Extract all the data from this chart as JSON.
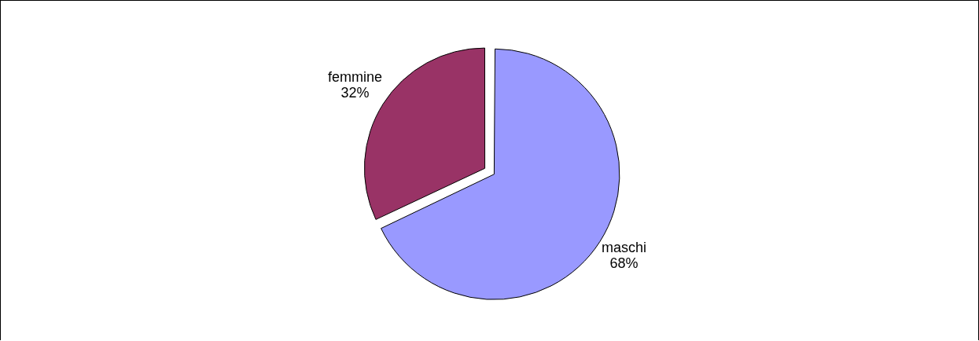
{
  "chart_data": {
    "type": "pie",
    "categories": [
      "maschi",
      "femmine"
    ],
    "values": [
      68,
      32
    ],
    "value_labels": [
      "68%",
      "32%"
    ],
    "colors": [
      "#9999ff",
      "#993366"
    ],
    "legend": false
  }
}
